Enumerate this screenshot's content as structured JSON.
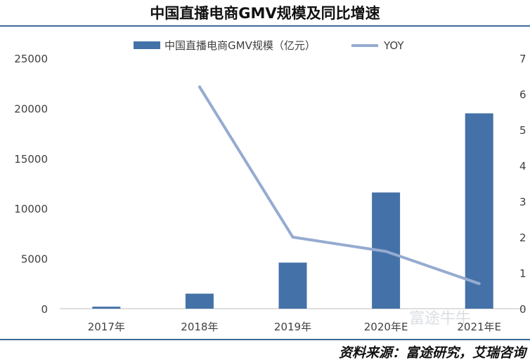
{
  "page": {
    "title": "中国直播电商GMV规模及同比增速",
    "source": "资料来源：富途研究，艾瑞咨询",
    "watermark": "富途牛牛"
  },
  "colors": {
    "bar": "#4472a8",
    "line": "#95abd0",
    "rule": "#3f6a96",
    "axis": "#bfbfbf",
    "text": "#404040"
  },
  "chart_data": {
    "type": "bar",
    "categories": [
      "2017年",
      "2018年",
      "2019年",
      "2020年E",
      "2021年E"
    ],
    "series": [
      {
        "name": "中国直播电商GMV规模（亿元）",
        "type": "bar",
        "axis": "left",
        "values": [
          200,
          1500,
          4600,
          11600,
          19500
        ]
      },
      {
        "name": "YOY",
        "type": "line",
        "axis": "right",
        "values": [
          null,
          6.2,
          2.0,
          1.6,
          0.7
        ]
      }
    ],
    "yticks": [
      "0",
      "5000",
      "10000",
      "15000",
      "20000",
      "25000"
    ],
    "ylim": [
      0,
      25000
    ],
    "y2ticks": [
      "0",
      "1",
      "2",
      "3",
      "4",
      "5",
      "6",
      "7"
    ],
    "y2lim": [
      0,
      7
    ],
    "legend_position": "top",
    "grid": false
  }
}
